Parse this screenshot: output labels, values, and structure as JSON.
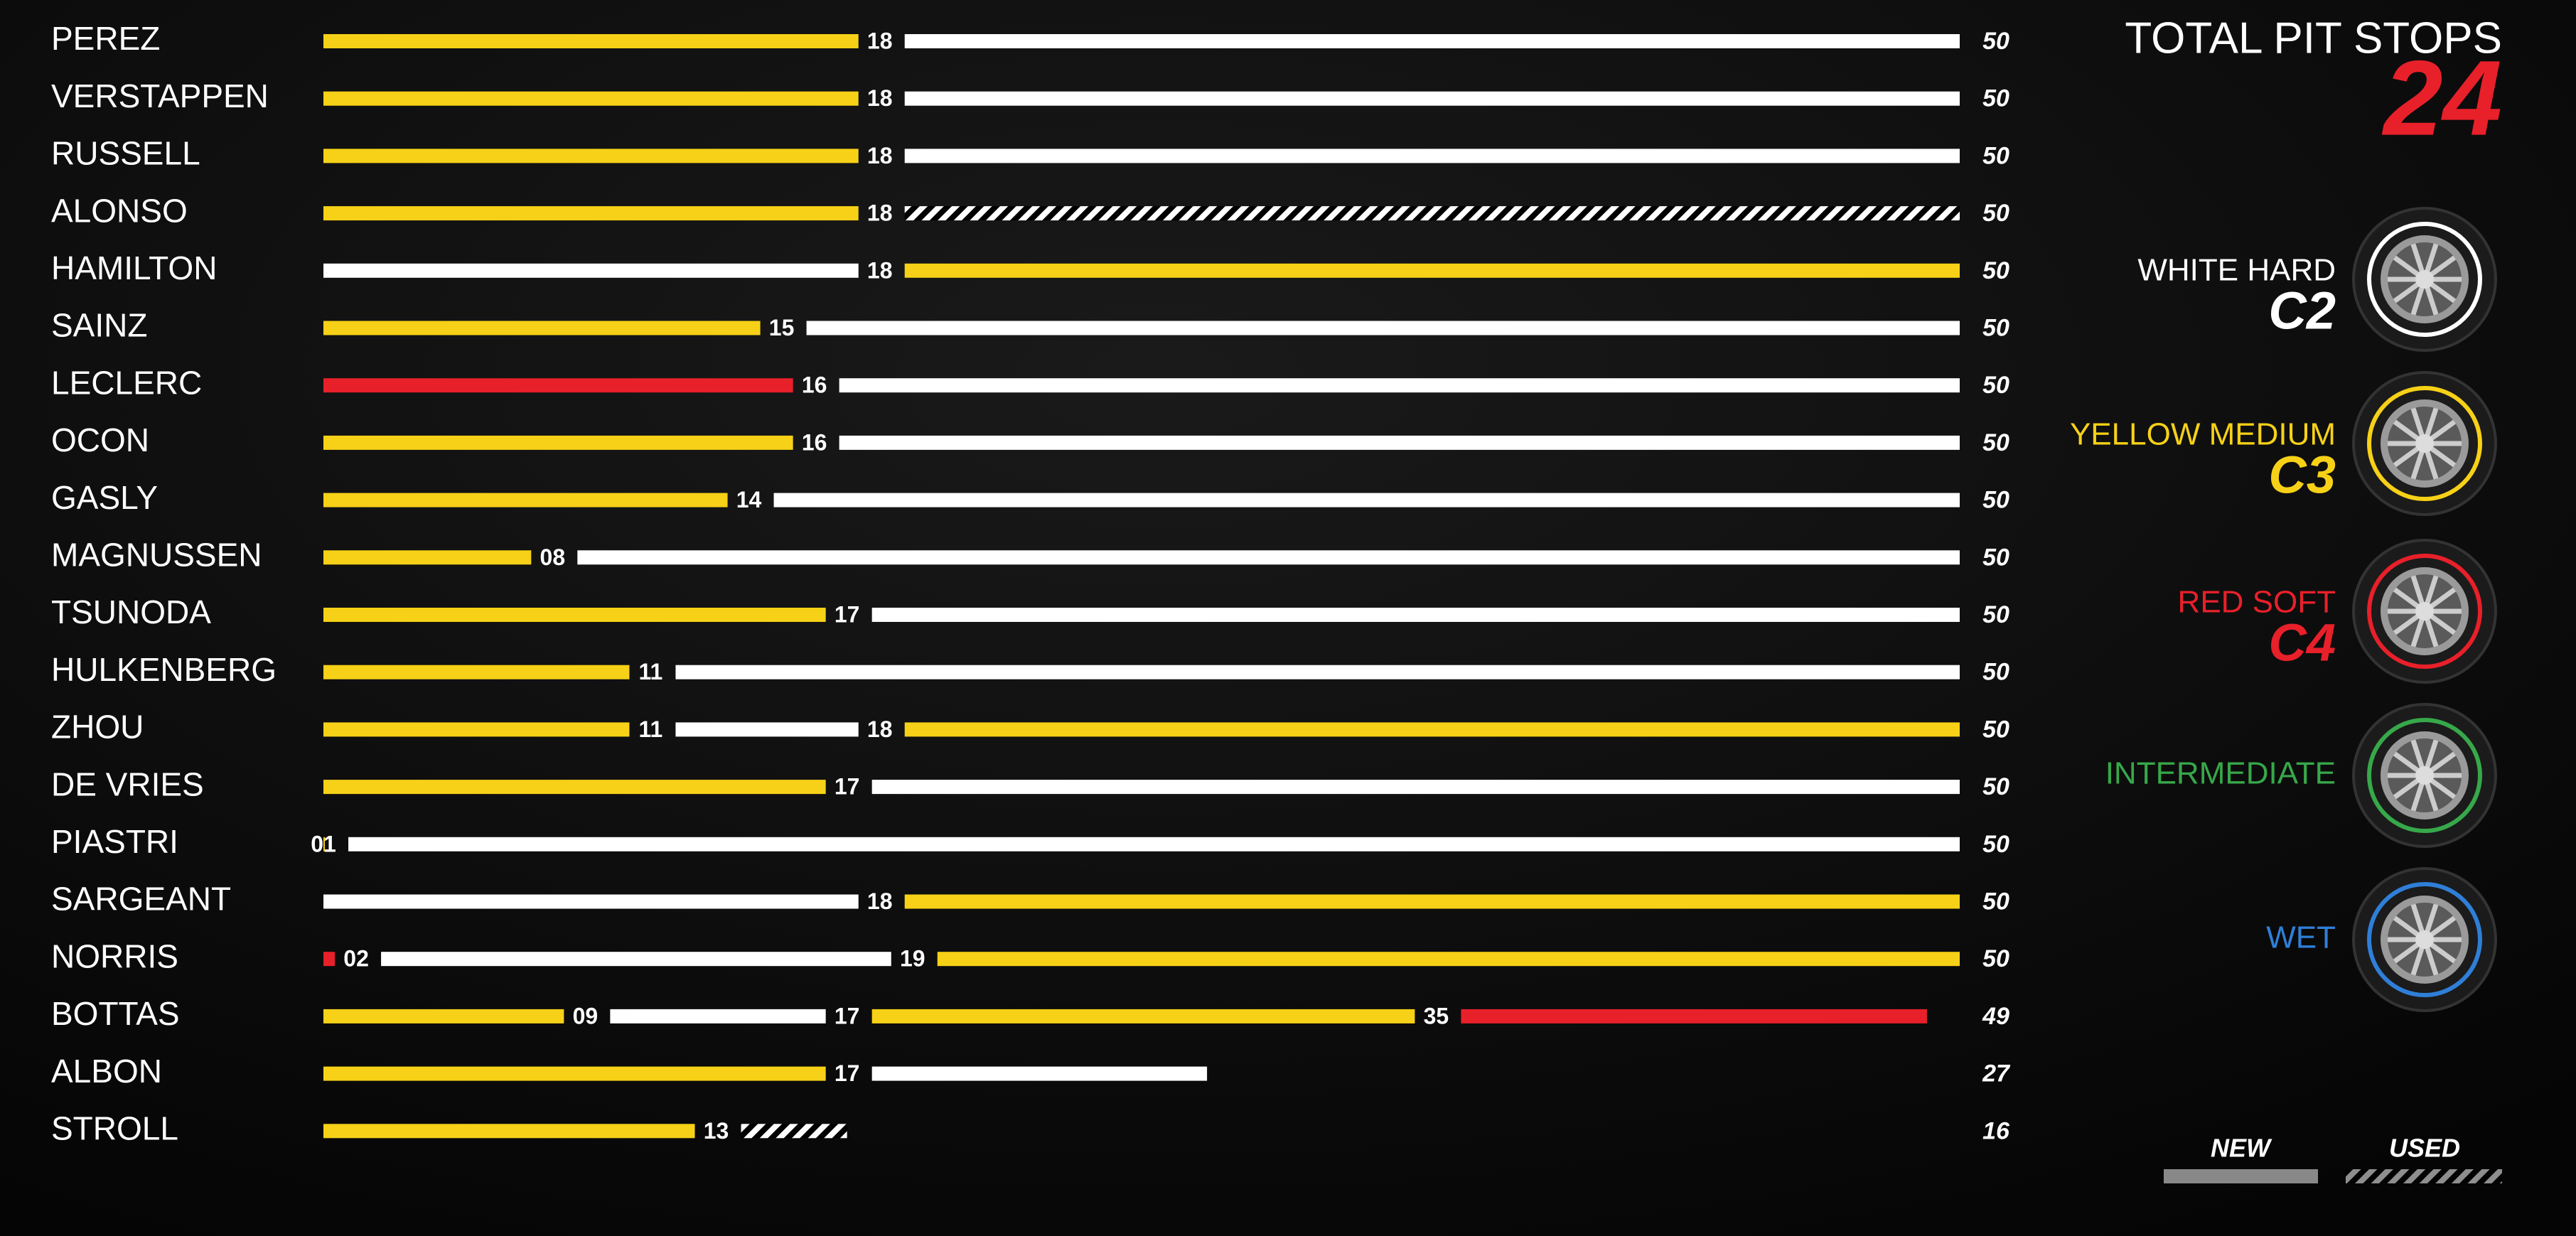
{
  "chart_data": {
    "type": "strategy",
    "title": "TOTAL PIT STOPS",
    "total": 24,
    "xlim": [
      0,
      50
    ],
    "drivers": [
      {
        "name": "PEREZ",
        "stints": [
          {
            "color": "#f7d117",
            "end": 18
          },
          {
            "color": "#ffffff",
            "end": 50
          }
        ]
      },
      {
        "name": "VERSTAPPEN",
        "stints": [
          {
            "color": "#f7d117",
            "end": 18
          },
          {
            "color": "#ffffff",
            "end": 50
          }
        ]
      },
      {
        "name": "RUSSELL",
        "stints": [
          {
            "color": "#f7d117",
            "end": 18
          },
          {
            "color": "#ffffff",
            "end": 50
          }
        ]
      },
      {
        "name": "ALONSO",
        "stints": [
          {
            "color": "#f7d117",
            "end": 18
          },
          {
            "color": "#ffffff",
            "end": 50,
            "used": true
          }
        ]
      },
      {
        "name": "HAMILTON",
        "stints": [
          {
            "color": "#ffffff",
            "end": 18
          },
          {
            "color": "#f7d117",
            "end": 50
          }
        ]
      },
      {
        "name": "SAINZ",
        "stints": [
          {
            "color": "#f7d117",
            "end": 15
          },
          {
            "color": "#ffffff",
            "end": 50
          }
        ]
      },
      {
        "name": "LECLERC",
        "stints": [
          {
            "color": "#e8202a",
            "end": 16
          },
          {
            "color": "#ffffff",
            "end": 50
          }
        ]
      },
      {
        "name": "OCON",
        "stints": [
          {
            "color": "#f7d117",
            "end": 16
          },
          {
            "color": "#ffffff",
            "end": 50
          }
        ]
      },
      {
        "name": "GASLY",
        "stints": [
          {
            "color": "#f7d117",
            "end": 14
          },
          {
            "color": "#ffffff",
            "end": 50
          }
        ]
      },
      {
        "name": "MAGNUSSEN",
        "stints": [
          {
            "color": "#f7d117",
            "end": 8,
            "label": "08"
          },
          {
            "color": "#ffffff",
            "end": 50
          }
        ]
      },
      {
        "name": "TSUNODA",
        "stints": [
          {
            "color": "#f7d117",
            "end": 17
          },
          {
            "color": "#ffffff",
            "end": 50
          }
        ]
      },
      {
        "name": "HULKENBERG",
        "stints": [
          {
            "color": "#f7d117",
            "end": 11
          },
          {
            "color": "#ffffff",
            "end": 50
          }
        ]
      },
      {
        "name": "ZHOU",
        "stints": [
          {
            "color": "#f7d117",
            "end": 11
          },
          {
            "color": "#ffffff",
            "end": 18
          },
          {
            "color": "#f7d117",
            "end": 50
          }
        ]
      },
      {
        "name": "DE VRIES",
        "stints": [
          {
            "color": "#f7d117",
            "end": 17
          },
          {
            "color": "#ffffff",
            "end": 50
          }
        ]
      },
      {
        "name": "PIASTRI",
        "stints": [
          {
            "color": "#f7d117",
            "end": 1,
            "label": "01"
          },
          {
            "color": "#ffffff",
            "end": 50
          }
        ]
      },
      {
        "name": "SARGEANT",
        "stints": [
          {
            "color": "#ffffff",
            "end": 18
          },
          {
            "color": "#f7d117",
            "end": 50
          }
        ]
      },
      {
        "name": "NORRIS",
        "stints": [
          {
            "color": "#e8202a",
            "end": 2,
            "label": "02"
          },
          {
            "color": "#ffffff",
            "end": 19
          },
          {
            "color": "#f7d117",
            "end": 50
          }
        ]
      },
      {
        "name": "BOTTAS",
        "stints": [
          {
            "color": "#f7d117",
            "end": 9,
            "label": "09"
          },
          {
            "color": "#ffffff",
            "end": 17
          },
          {
            "color": "#f7d117",
            "end": 35
          },
          {
            "color": "#e8202a",
            "end": 49
          }
        ]
      },
      {
        "name": "ALBON",
        "stints": [
          {
            "color": "#f7d117",
            "end": 17
          },
          {
            "color": "#ffffff",
            "end": 27
          }
        ]
      },
      {
        "name": "STROLL",
        "stints": [
          {
            "color": "#f7d117",
            "end": 13
          },
          {
            "color": "#ffffff",
            "end": 16,
            "used": true
          }
        ]
      }
    ],
    "legend": [
      {
        "label": "WHITE HARD",
        "code": "C2",
        "color": "#ffffff"
      },
      {
        "label": "YELLOW MEDIUM",
        "code": "C3",
        "color": "#f7d117"
      },
      {
        "label": "RED SOFT",
        "code": "C4",
        "color": "#e8202a"
      },
      {
        "label": "INTERMEDIATE",
        "color": "#37a84a"
      },
      {
        "label": "WET",
        "color": "#2f7fd8"
      }
    ],
    "condition_legend": {
      "new": "NEW",
      "used": "USED"
    }
  }
}
